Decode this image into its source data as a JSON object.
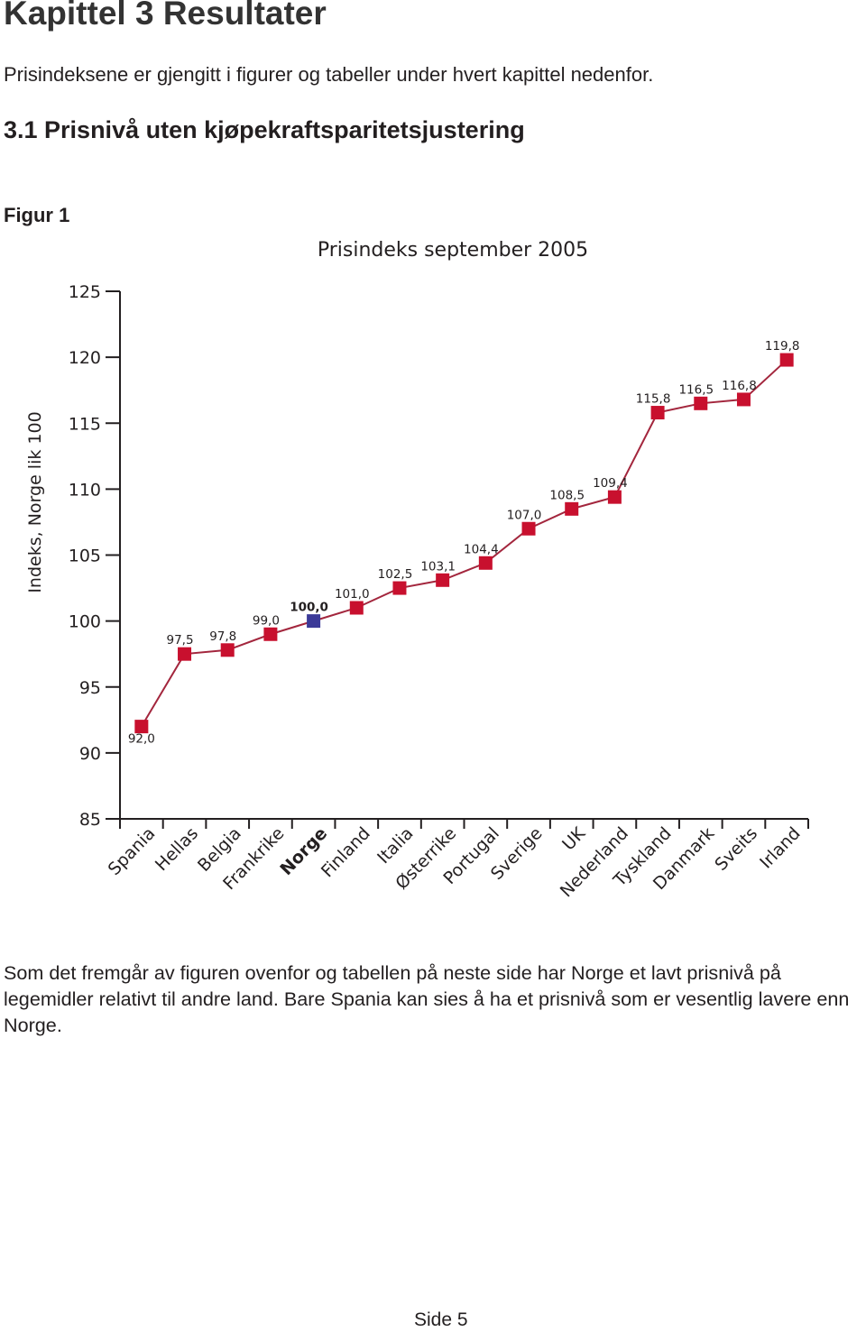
{
  "header": {
    "chapter": "Kapittel 3   Resultater",
    "intro": "Prisindeksene er gjengitt i figurer og tabeller under hvert kapittel nedenfor.",
    "section": "3.1 Prisnivå uten kjøpekraftsparitetsjustering",
    "figure_label": "Figur 1"
  },
  "chart_data": {
    "type": "line",
    "title": "Prisindeks september 2005",
    "y_label": "Indeks, Norge lik 100",
    "categories": [
      "Spania",
      "Hellas",
      "Belgia",
      "Frankrike",
      "Norge",
      "Finland",
      "Italia",
      "Østerrike",
      "Portugal",
      "Sverige",
      "UK",
      "Nederland",
      "Tyskland",
      "Danmark",
      "Sveits",
      "Irland"
    ],
    "values": [
      92.0,
      97.5,
      97.8,
      99.0,
      100.0,
      101.0,
      102.5,
      103.1,
      104.4,
      107.0,
      108.5,
      109.4,
      115.8,
      116.5,
      116.8,
      119.8
    ],
    "value_labels": [
      "92,0",
      "97,5",
      "97,8",
      "99,0",
      "100,0",
      "101,0",
      "102,5",
      "103,1",
      "104,4",
      "107,0",
      "108,5",
      "109,4",
      "115,8",
      "116,5",
      "116,8",
      "119,8"
    ],
    "line_color": "#a3263d",
    "point_colors": [
      "#c8102e",
      "#c8102e",
      "#c8102e",
      "#c8102e",
      "#3b3a98",
      "#c8102e",
      "#c8102e",
      "#c8102e",
      "#c8102e",
      "#c8102e",
      "#c8102e",
      "#c8102e",
      "#c8102e",
      "#c8102e",
      "#c8102e",
      "#c8102e"
    ],
    "category_colors": [
      "#231f20",
      "#231f20",
      "#231f20",
      "#231f20",
      "#c8102e",
      "#231f20",
      "#231f20",
      "#231f20",
      "#231f20",
      "#231f20",
      "#231f20",
      "#231f20",
      "#231f20",
      "#231f20",
      "#231f20",
      "#231f20"
    ],
    "ylim": [
      85,
      125
    ],
    "yticks": [
      85,
      90,
      95,
      100,
      105,
      110,
      115,
      120,
      125
    ],
    "grid": false
  },
  "body": {
    "paragraph": "Som det fremgår av figuren ovenfor og tabellen på neste side har Norge et lavt prisnivå på legemidler relativt til andre land. Bare Spania kan sies å ha et prisnivå som er vesentlig lavere enn Norge."
  },
  "footer": {
    "page": "Side 5"
  }
}
